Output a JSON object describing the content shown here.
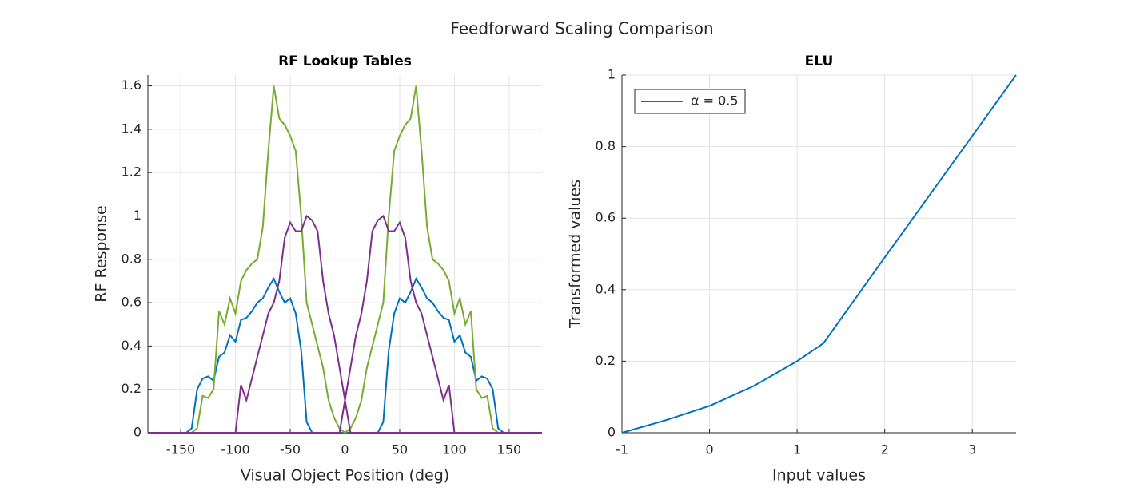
{
  "title": "Feedforward Scaling Comparison",
  "chart_data": [
    {
      "type": "line",
      "title": "RF Lookup Tables",
      "xlabel": "Visual Object Position (deg)",
      "ylabel": "RF Response",
      "x": [
        -180,
        -175,
        -170,
        -165,
        -160,
        -155,
        -150,
        -145,
        -140,
        -135,
        -130,
        -125,
        -120,
        -115,
        -110,
        -105,
        -100,
        -95,
        -90,
        -85,
        -80,
        -75,
        -70,
        -65,
        -60,
        -55,
        -50,
        -45,
        -40,
        -35,
        -30,
        -25,
        -20,
        -15,
        -10,
        -5,
        0,
        5,
        10,
        15,
        20,
        25,
        30,
        35,
        40,
        45,
        50,
        55,
        60,
        65,
        70,
        75,
        80,
        85,
        90,
        95,
        100,
        105,
        110,
        115,
        120,
        125,
        130,
        135,
        140,
        145,
        150,
        155,
        160,
        165,
        170,
        175,
        180
      ],
      "series": [
        {
          "color": "#0072BD",
          "values": [
            0,
            0,
            0,
            0,
            0,
            0,
            0,
            0,
            0.02,
            0.2,
            0.25,
            0.26,
            0.24,
            0.35,
            0.37,
            0.45,
            0.42,
            0.52,
            0.53,
            0.56,
            0.6,
            0.62,
            0.67,
            0.71,
            0.65,
            0.6,
            0.62,
            0.55,
            0.38,
            0.05,
            0,
            0,
            0,
            0,
            0,
            0,
            0,
            0,
            0,
            0,
            0,
            0,
            0,
            0.05,
            0.38,
            0.55,
            0.62,
            0.6,
            0.65,
            0.71,
            0.67,
            0.62,
            0.6,
            0.56,
            0.53,
            0.52,
            0.42,
            0.45,
            0.37,
            0.35,
            0.24,
            0.26,
            0.25,
            0.2,
            0.02,
            0,
            0,
            0,
            0,
            0,
            0,
            0,
            0
          ]
        },
        {
          "color": "#77AC30",
          "values": [
            0,
            0,
            0,
            0,
            0,
            0,
            0,
            0,
            0,
            0.02,
            0.17,
            0.16,
            0.2,
            0.56,
            0.5,
            0.62,
            0.55,
            0.7,
            0.75,
            0.78,
            0.8,
            0.95,
            1.3,
            1.6,
            1.45,
            1.42,
            1.37,
            1.3,
            1.0,
            0.6,
            0.5,
            0.4,
            0.3,
            0.15,
            0.07,
            0.02,
            0,
            0.02,
            0.07,
            0.15,
            0.3,
            0.4,
            0.5,
            0.6,
            1.0,
            1.3,
            1.37,
            1.42,
            1.45,
            1.6,
            1.3,
            0.95,
            0.8,
            0.78,
            0.75,
            0.7,
            0.55,
            0.62,
            0.5,
            0.56,
            0.2,
            0.16,
            0.17,
            0.02,
            0,
            0,
            0,
            0,
            0,
            0,
            0,
            0,
            0
          ]
        },
        {
          "color": "#7E2F8E",
          "values": [
            0,
            0,
            0,
            0,
            0,
            0,
            0,
            0,
            0,
            0,
            0,
            0,
            0,
            0,
            0,
            0,
            0,
            0.22,
            0.15,
            0.25,
            0.35,
            0.45,
            0.55,
            0.6,
            0.7,
            0.9,
            0.97,
            0.93,
            0.93,
            1.0,
            0.98,
            0.93,
            0.7,
            0.55,
            0.45,
            0.3,
            0.15,
            0,
            0,
            0,
            0,
            0,
            0,
            0,
            0,
            0,
            0,
            0,
            0,
            0,
            0,
            0,
            0,
            0,
            0,
            0,
            0,
            0,
            0,
            0,
            0,
            0,
            0,
            0,
            0,
            0,
            0,
            0,
            0,
            0,
            0,
            0,
            0
          ]
        },
        {
          "color": "#7E2F8E",
          "values": [
            0,
            0,
            0,
            0,
            0,
            0,
            0,
            0,
            0,
            0,
            0,
            0,
            0,
            0,
            0,
            0,
            0,
            0,
            0,
            0,
            0,
            0,
            0,
            0,
            0,
            0,
            0,
            0,
            0,
            0,
            0,
            0,
            0,
            0,
            0,
            0,
            0.15,
            0.3,
            0.45,
            0.55,
            0.7,
            0.93,
            0.98,
            1.0,
            0.93,
            0.93,
            0.97,
            0.9,
            0.7,
            0.6,
            0.55,
            0.45,
            0.35,
            0.25,
            0.15,
            0.22,
            0,
            0,
            0,
            0,
            0,
            0,
            0,
            0,
            0,
            0,
            0,
            0,
            0,
            0,
            0,
            0,
            0
          ]
        }
      ],
      "xlim": [
        -180,
        180
      ],
      "xticks": [
        -150,
        -100,
        -50,
        0,
        50,
        100,
        150
      ],
      "ylim": [
        0,
        1.65
      ],
      "yticks": [
        0,
        0.2,
        0.4,
        0.6,
        0.8,
        1,
        1.2,
        1.4,
        1.6
      ],
      "grid": true
    },
    {
      "type": "line",
      "title": "ELU",
      "xlabel": "Input values",
      "ylabel": "Transformed values",
      "x": [
        -1,
        -0.5,
        0,
        0.5,
        1,
        1.3,
        2,
        2.5,
        3,
        3.5
      ],
      "series": [
        {
          "name": "α = 0.5",
          "color": "#0072BD",
          "values": [
            0,
            0.035,
            0.075,
            0.13,
            0.2,
            0.25,
            0.49,
            0.66,
            0.83,
            1.0
          ]
        }
      ],
      "xlim": [
        -1,
        3.5
      ],
      "xticks": [
        -1,
        0,
        1,
        2,
        3
      ],
      "ylim": [
        0,
        1
      ],
      "yticks": [
        0,
        0.2,
        0.4,
        0.6,
        0.8,
        1
      ],
      "grid": true,
      "legend": "northwest"
    }
  ]
}
